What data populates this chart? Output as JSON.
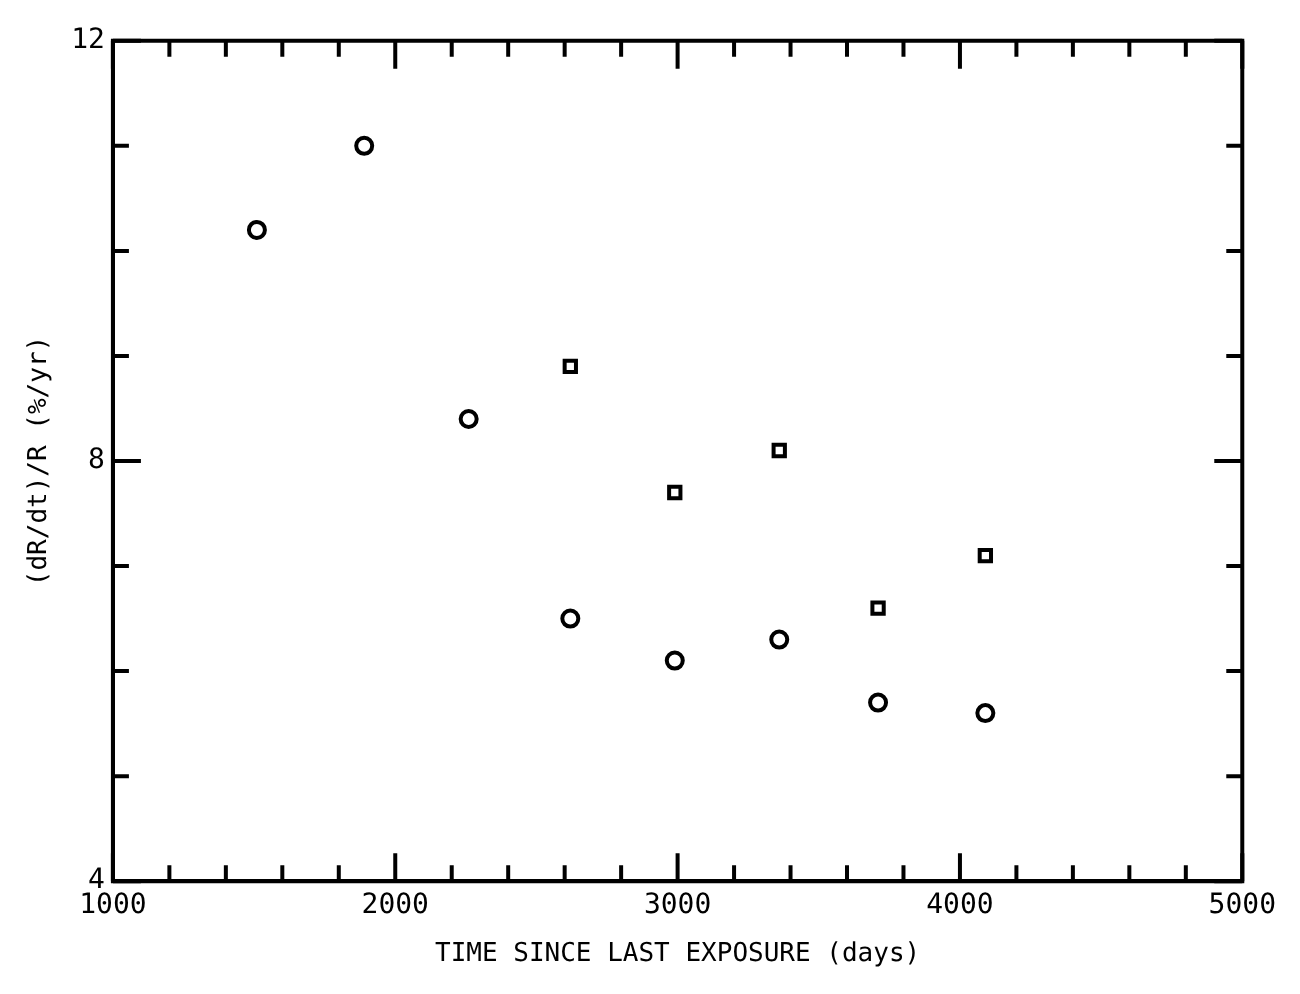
{
  "chart_data": {
    "type": "scatter",
    "xlabel": "TIME SINCE LAST EXPOSURE (days)",
    "ylabel": "(dR/dt)/R (%/yr)",
    "xlim": [
      1000,
      5000
    ],
    "xticks": [
      1000,
      {
        "value": 1200,
        "label": null
      },
      {
        "value": 1400,
        "label": null
      },
      {
        "value": 1600,
        "label": null
      },
      {
        "value": 1800,
        "label": null
      },
      2000,
      {
        "value": 2200,
        "label": null
      },
      {
        "value": 2400,
        "label": null
      },
      {
        "value": 2600,
        "label": null
      },
      {
        "value": 2800,
        "label": null
      },
      3000,
      {
        "value": 3200,
        "label": null
      },
      {
        "value": 3400,
        "label": null
      },
      {
        "value": 3600,
        "label": null
      },
      {
        "value": 3800,
        "label": null
      },
      4000,
      {
        "value": 4200,
        "label": null
      },
      {
        "value": 4400,
        "label": null
      },
      {
        "value": 4600,
        "label": null
      },
      {
        "value": 4800,
        "label": null
      },
      5000
    ],
    "ylim": [
      4,
      12
    ],
    "yticks": [
      4,
      {
        "value": 5,
        "label": null
      },
      {
        "value": 6,
        "label": null
      },
      {
        "value": 7,
        "label": null
      },
      8,
      {
        "value": 9,
        "label": null
      },
      {
        "value": 10,
        "label": null
      },
      {
        "value": 11,
        "label": null
      },
      12
    ],
    "grid": false,
    "legend": false,
    "series": [
      {
        "color": "#000000",
        "marker": "circle",
        "x": [
          1510,
          1890,
          2260,
          2620,
          2990,
          3360,
          3710,
          4090
        ],
        "values": [
          10.2,
          11.0,
          8.4,
          6.5,
          6.1,
          6.3,
          5.7,
          5.6
        ]
      },
      {
        "color": "#000000",
        "marker": "square",
        "x": [
          2620,
          2990,
          3360,
          3710,
          4090
        ],
        "values": [
          8.9,
          7.7,
          8.1,
          6.6,
          7.1
        ]
      }
    ]
  }
}
